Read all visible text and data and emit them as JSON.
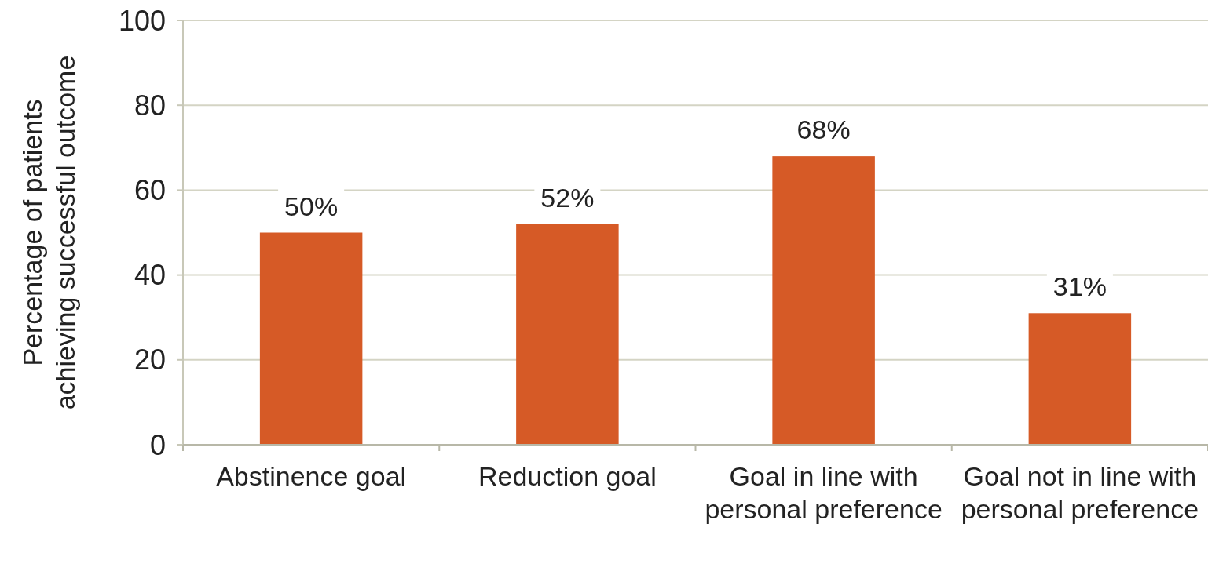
{
  "chart_data": {
    "type": "bar",
    "ylabel": "Percentage of patients achieving successful outcome",
    "categories": [
      "Abstinence goal",
      "Reduction goal",
      "Goal in line with personal preference",
      "Goal not in line with personal preference"
    ],
    "values": [
      50,
      52,
      68,
      31
    ],
    "color": "#d65a26",
    "value_labels": [
      "50%",
      "52%",
      "68%",
      "31%"
    ],
    "ylim": [
      0,
      100
    ],
    "yticks": [
      0,
      20,
      40,
      60,
      80,
      100
    ],
    "grid": "y"
  }
}
